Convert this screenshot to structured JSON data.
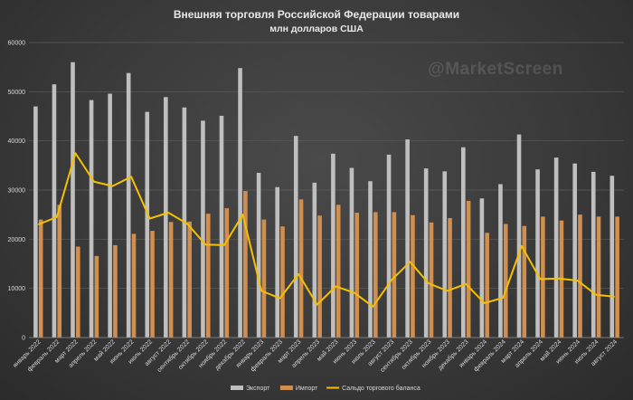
{
  "chart_data": {
    "type": "bar",
    "title": "Внешняя торговля Российской Федерации товарами",
    "subtitle": "млн долларов США",
    "watermark": "@MarketScreen",
    "categories": [
      "январь 2022",
      "февраль 2022",
      "март 2022",
      "апрель 2022",
      "май 2022",
      "июнь 2022",
      "июль 2022",
      "август 2022",
      "сентябрь 2022",
      "октябрь 2022",
      "ноябрь 2022",
      "декабрь 2022",
      "январь 2023",
      "февраль 2023",
      "март 2023",
      "апрель 2023",
      "май 2023",
      "июнь 2023",
      "июль 2023",
      "август 2023",
      "сентябрь 2023",
      "октябрь 2023",
      "ноябрь 2023",
      "декабрь 2023",
      "январь 2024",
      "февраль 2024",
      "март 2024",
      "апрель 2024",
      "май 2024",
      "июнь 2024",
      "июль 2024",
      "август 2024"
    ],
    "series": [
      {
        "name": "Экспорт",
        "type": "bar",
        "color": "#bfbfbf",
        "values": [
          47000,
          51500,
          56000,
          48300,
          49600,
          53800,
          45900,
          48900,
          46800,
          44100,
          45100,
          54800,
          33500,
          30600,
          41000,
          31500,
          37400,
          34500,
          31800,
          37200,
          40300,
          34400,
          33800,
          38700,
          28300,
          31200,
          41300,
          34200,
          36600,
          35400,
          33700,
          32900
        ]
      },
      {
        "name": "Импорт",
        "type": "bar",
        "color": "#d08f4e",
        "values": [
          24000,
          27000,
          18500,
          16600,
          18800,
          21100,
          21700,
          23500,
          23600,
          25200,
          26300,
          29800,
          24000,
          22600,
          28100,
          24800,
          27000,
          25400,
          25500,
          25500,
          24900,
          23400,
          24300,
          27800,
          21300,
          23100,
          22700,
          24600,
          23800,
          25000,
          24600,
          24600
        ]
      },
      {
        "name": "Сальдо торгового баланса",
        "type": "line",
        "color": "#f5c000",
        "values": [
          23000,
          24500,
          37500,
          31700,
          30800,
          32700,
          24200,
          25400,
          23200,
          18900,
          18800,
          25000,
          9500,
          8000,
          12900,
          6700,
          10400,
          9100,
          6300,
          11700,
          15400,
          11000,
          9500,
          10900,
          7000,
          8100,
          18600,
          11900,
          12000,
          11600,
          8700,
          8300
        ]
      }
    ],
    "ylim": [
      0,
      60000
    ],
    "yticks": [
      0,
      10000,
      20000,
      30000,
      40000,
      50000,
      60000
    ],
    "grid": true,
    "legend": "bottom"
  }
}
